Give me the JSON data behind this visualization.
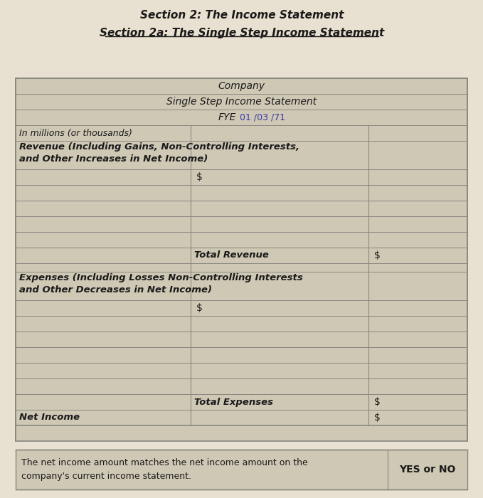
{
  "page_bg": "#e8e0d0",
  "title1": "Section 2: The Income Statement",
  "title2": "Section 2a: The Single Step Income Statement",
  "table_header1": "Company",
  "table_header2": "Single Step Income Statement",
  "fye_label": "FYE",
  "fye_date": "01 /03 /71",
  "col1_label": "In millions (or thousands)",
  "revenue_label": "Revenue (Including Gains, Non-Controlling Interests,\nand Other Increases in Net Income)",
  "dollar_sign_row1": "$",
  "total_revenue_label": "Total Revenue",
  "dollar_sign_total_rev": "$",
  "expenses_label": "Expenses (Including Losses Non-Controlling Interests\nand Other Decreases in Net Income)",
  "dollar_sign_row2": "$",
  "total_expenses_label": "Total Expenses",
  "dollar_sign_total_exp": "$",
  "net_income_label": "Net Income",
  "dollar_sign_net": "$",
  "footer_text": "The net income amount matches the net income amount on the\ncompany's current income statement.",
  "yes_or_no": "YES or NO",
  "table_bg": "#cfc8b5",
  "line_color": "#888880",
  "text_color": "#1a1a1a"
}
